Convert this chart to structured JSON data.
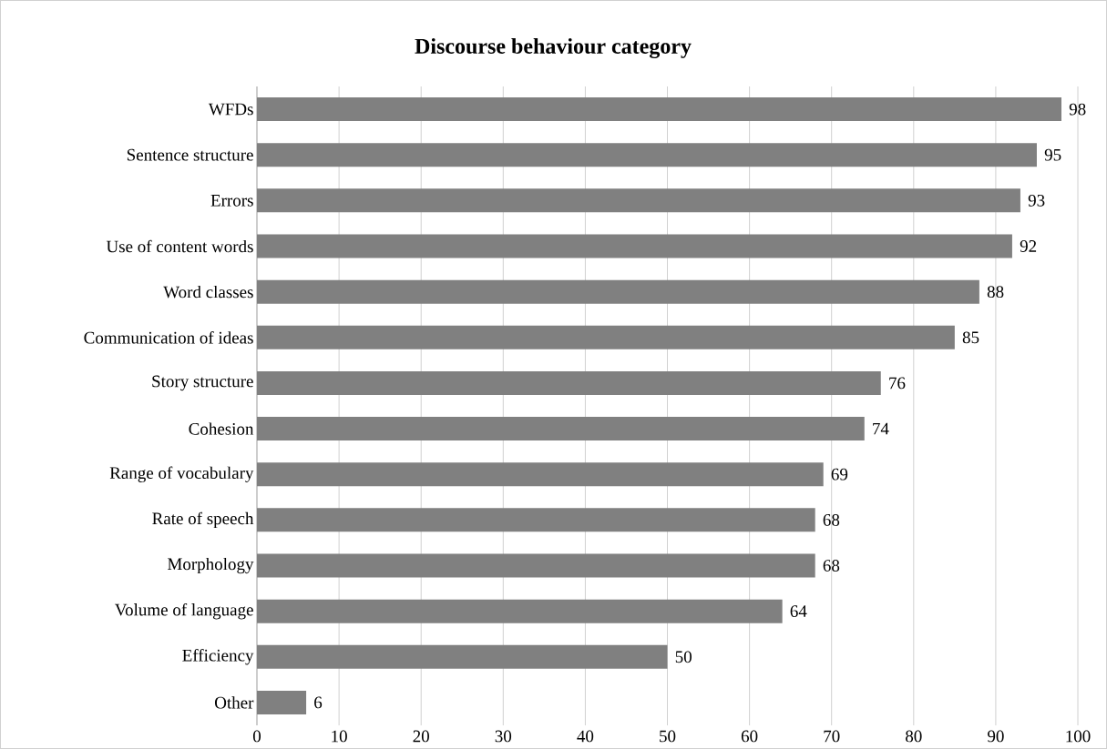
{
  "chart_data": {
    "type": "bar",
    "orientation": "horizontal",
    "title": "Discourse behaviour category",
    "categories": [
      "WFDs",
      "Sentence structure",
      "Errors",
      "Use of content words",
      "Word classes",
      "Communication of ideas",
      "Story structure",
      "Cohesion",
      "Range of vocabulary",
      "Rate of speech",
      "Morphology",
      "Volume of language",
      "Efficiency",
      "Other"
    ],
    "values": [
      98,
      95,
      93,
      92,
      88,
      85,
      76,
      74,
      69,
      68,
      68,
      64,
      50,
      6
    ],
    "color": "#808080",
    "xlim": [
      0,
      100
    ],
    "xticks": [
      0,
      10,
      20,
      30,
      40,
      50,
      60,
      70,
      80,
      90,
      100
    ],
    "grid": "x",
    "data_labels": true
  }
}
